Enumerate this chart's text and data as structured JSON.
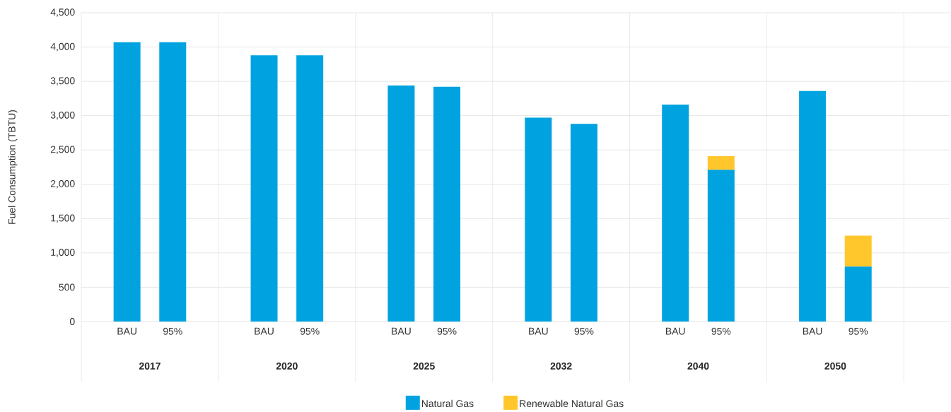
{
  "chart_data": {
    "type": "bar",
    "stacked": true,
    "ylabel": "Fuel Consumption (TBTU)",
    "categories": [
      "BAU",
      "95%",
      "BAU",
      "95%",
      "BAU",
      "95%",
      "BAU",
      "95%",
      "BAU",
      "95%",
      "BAU",
      "95%"
    ],
    "annotations": [
      "2017",
      "2020",
      "2025",
      "2032",
      "2040",
      "2050"
    ],
    "series": [
      {
        "name": "Natural Gas",
        "color": "#00a3e0",
        "values": [
          4070,
          4070,
          3880,
          3880,
          3440,
          3420,
          2970,
          2880,
          3160,
          2210,
          3360,
          800
        ]
      },
      {
        "name": "Renewable Natural Gas",
        "color": "#ffc72c",
        "values": [
          null,
          null,
          null,
          null,
          null,
          null,
          null,
          null,
          null,
          200,
          null,
          450
        ]
      }
    ],
    "ylim": [
      0,
      4500
    ],
    "yticks": [
      0,
      500,
      {
        "value": 1000,
        "label": "1,000"
      },
      {
        "value": 1500,
        "label": "1,500"
      },
      {
        "value": 2000,
        "label": "2,000"
      },
      {
        "value": 2500,
        "label": "2,500"
      },
      {
        "value": 3000,
        "label": "3,000"
      },
      {
        "value": 3500,
        "label": "3,500"
      },
      {
        "value": 4000,
        "label": "4,000"
      },
      {
        "value": 4500,
        "label": "4,500"
      }
    ],
    "grid": "y",
    "legend": "bottom"
  }
}
